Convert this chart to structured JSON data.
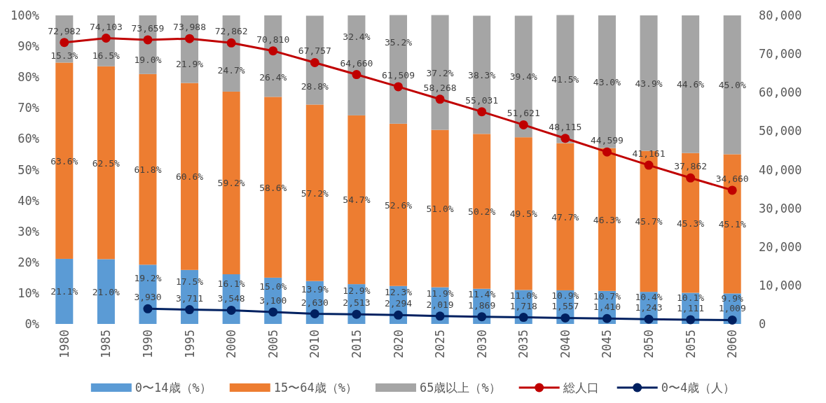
{
  "chart_data": {
    "type": "bar",
    "stacked": true,
    "legend": "bottom",
    "categories": [
      "1980",
      "1985",
      "1990",
      "1995",
      "2000",
      "2005",
      "2010",
      "2015",
      "2020",
      "2025",
      "2030",
      "2035",
      "2040",
      "2045",
      "2050",
      "2055",
      "2060"
    ],
    "ylim": [
      0,
      100
    ],
    "yticks": [
      {
        "value": 0,
        "label": "0%"
      },
      {
        "value": 10,
        "label": "10%"
      },
      {
        "value": 20,
        "label": "20%"
      },
      {
        "value": 30,
        "label": "30%"
      },
      {
        "value": 40,
        "label": "40%"
      },
      {
        "value": 50,
        "label": "50%"
      },
      {
        "value": 60,
        "label": "60%"
      },
      {
        "value": 70,
        "label": "70%"
      },
      {
        "value": 80,
        "label": "80%"
      },
      {
        "value": 90,
        "label": "90%"
      },
      {
        "value": 100,
        "label": "100%"
      }
    ],
    "y2lim": [
      0,
      80000
    ],
    "y2ticks": [
      0,
      {
        "value": 10000,
        "label": "10,000"
      },
      {
        "value": 20000,
        "label": "20,000"
      },
      {
        "value": 30000,
        "label": "30,000"
      },
      {
        "value": 40000,
        "label": "40,000"
      },
      {
        "value": 50000,
        "label": "50,000"
      },
      {
        "value": 60000,
        "label": "60,000"
      },
      {
        "value": 70000,
        "label": "70,000"
      },
      {
        "value": 80000,
        "label": "80,000"
      }
    ],
    "series": [
      {
        "name": "0〜14歳（%）",
        "color": "#5b9bd5",
        "values": [
          21.1,
          21.0,
          19.2,
          17.5,
          16.1,
          15.0,
          13.9,
          12.9,
          12.3,
          11.9,
          11.4,
          11.0,
          10.9,
          10.7,
          10.4,
          10.1,
          9.9
        ],
        "value_labels": [
          "21.1%",
          "21.0%",
          "19.2%",
          "17.5%",
          "16.1%",
          "15.0%",
          "13.9%",
          "12.9%",
          "12.3%",
          "11.9%",
          "11.4%",
          "11.0%",
          "10.9%",
          "10.7%",
          "10.4%",
          "10.1%",
          "9.9%"
        ]
      },
      {
        "name": "15〜64歳（%）",
        "color": "#ed7d31",
        "values": [
          63.6,
          62.5,
          61.8,
          60.6,
          59.2,
          58.6,
          57.2,
          54.7,
          52.6,
          51.0,
          50.2,
          49.5,
          47.7,
          46.3,
          45.7,
          45.3,
          45.1
        ],
        "value_labels": [
          "63.6%",
          "62.5%",
          "61.8%",
          "60.6%",
          "59.2%",
          "58.6%",
          "57.2%",
          "54.7%",
          "52.6%",
          "51.0%",
          "50.2%",
          "49.5%",
          "47.7%",
          "46.3%",
          "45.7%",
          "45.3%",
          "45.1%"
        ]
      },
      {
        "name": "65歳以上（%）",
        "color": "#a5a5a5",
        "values": [
          15.3,
          16.5,
          19.0,
          21.9,
          24.7,
          26.4,
          28.8,
          32.4,
          35.2,
          37.2,
          38.3,
          39.4,
          41.5,
          43.0,
          43.9,
          44.6,
          45.0
        ],
        "value_labels": [
          "15.3%",
          "16.5%",
          "19.0%",
          "21.9%",
          "24.7%",
          "26.4%",
          "28.8%",
          "32.4%",
          "35.2%",
          "37.2%",
          "38.3%",
          "39.4%",
          "41.5%",
          "43.0%",
          "43.9%",
          "44.6%",
          "45.0%"
        ]
      },
      {
        "name": "総人口",
        "type": "line",
        "axis": "y2",
        "marker": "circle",
        "color": "#c00000",
        "values": [
          72982,
          74103,
          73659,
          73988,
          72862,
          70810,
          67757,
          64660,
          61509,
          58268,
          55031,
          51621,
          48115,
          44599,
          41161,
          37862,
          34660
        ],
        "value_labels": [
          "72,982",
          "74,103",
          "73,659",
          "73,988",
          "72,862",
          "70,810",
          "67,757",
          "64,660",
          "61,509",
          "58,268",
          "55,031",
          "51,621",
          "48,115",
          "44,599",
          "41,161",
          "37,862",
          "34,660"
        ]
      },
      {
        "name": "0〜4歳（人）",
        "type": "line",
        "axis": "y2",
        "marker": "circle",
        "color": "#002060",
        "values": [
          null,
          null,
          3930,
          3711,
          3548,
          3100,
          2630,
          2513,
          2294,
          2019,
          1869,
          1718,
          1557,
          1410,
          1243,
          1111,
          1009
        ],
        "value_labels": [
          null,
          null,
          "3,930",
          "3,711",
          "3,548",
          "3,100",
          "2,630",
          "2,513",
          "2,294",
          "2,019",
          "1,869",
          "1,718",
          "1,557",
          "1,410",
          "1,243",
          "1,111",
          "1,009"
        ]
      }
    ]
  }
}
